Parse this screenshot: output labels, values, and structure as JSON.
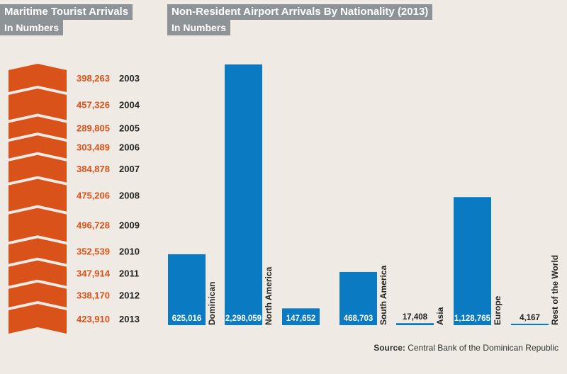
{
  "left_panel": {
    "title": "Maritime Tourist Arrivals",
    "subtitle": "In Numbers"
  },
  "right_panel": {
    "title": "Non-Resident Airport Arrivals By Nationality (2013)",
    "subtitle": "In Numbers"
  },
  "source": {
    "label": "Source:",
    "text": "Central Bank of the Dominican Republic"
  },
  "colors": {
    "chevron": "#d9521a",
    "value_text": "#d9521a",
    "bar": "#0a7ac2",
    "header_bg": "#8e9398"
  },
  "chart_data": [
    {
      "type": "bar",
      "title": "Maritime Tourist Arrivals",
      "subtitle": "In Numbers",
      "categories": [
        "2003",
        "2004",
        "2005",
        "2006",
        "2007",
        "2008",
        "2009",
        "2010",
        "2011",
        "2012",
        "2013"
      ],
      "values": [
        398263,
        457326,
        289805,
        303489,
        384878,
        475206,
        496728,
        352539,
        347914,
        338170,
        423910
      ],
      "value_labels": [
        "398,263",
        "457,326",
        "289,805",
        "303,489",
        "384,878",
        "475,206",
        "496,728",
        "352,539",
        "347,914",
        "338,170",
        "423,910"
      ]
    },
    {
      "type": "bar",
      "title": "Non-Resident Airport Arrivals By Nationality (2013)",
      "subtitle": "In Numbers",
      "categories": [
        "Dominican",
        "North America",
        "",
        "South America",
        "Asia",
        "Europe",
        "Rest of the World"
      ],
      "values": [
        625016,
        2298059,
        147652,
        468703,
        17408,
        1128765,
        4167
      ],
      "value_labels": [
        "625,016",
        "2,298,059",
        "147,652",
        "468,703",
        "17,408",
        "1,128,765",
        "4,167"
      ],
      "ylim": [
        0,
        2298059
      ]
    }
  ]
}
